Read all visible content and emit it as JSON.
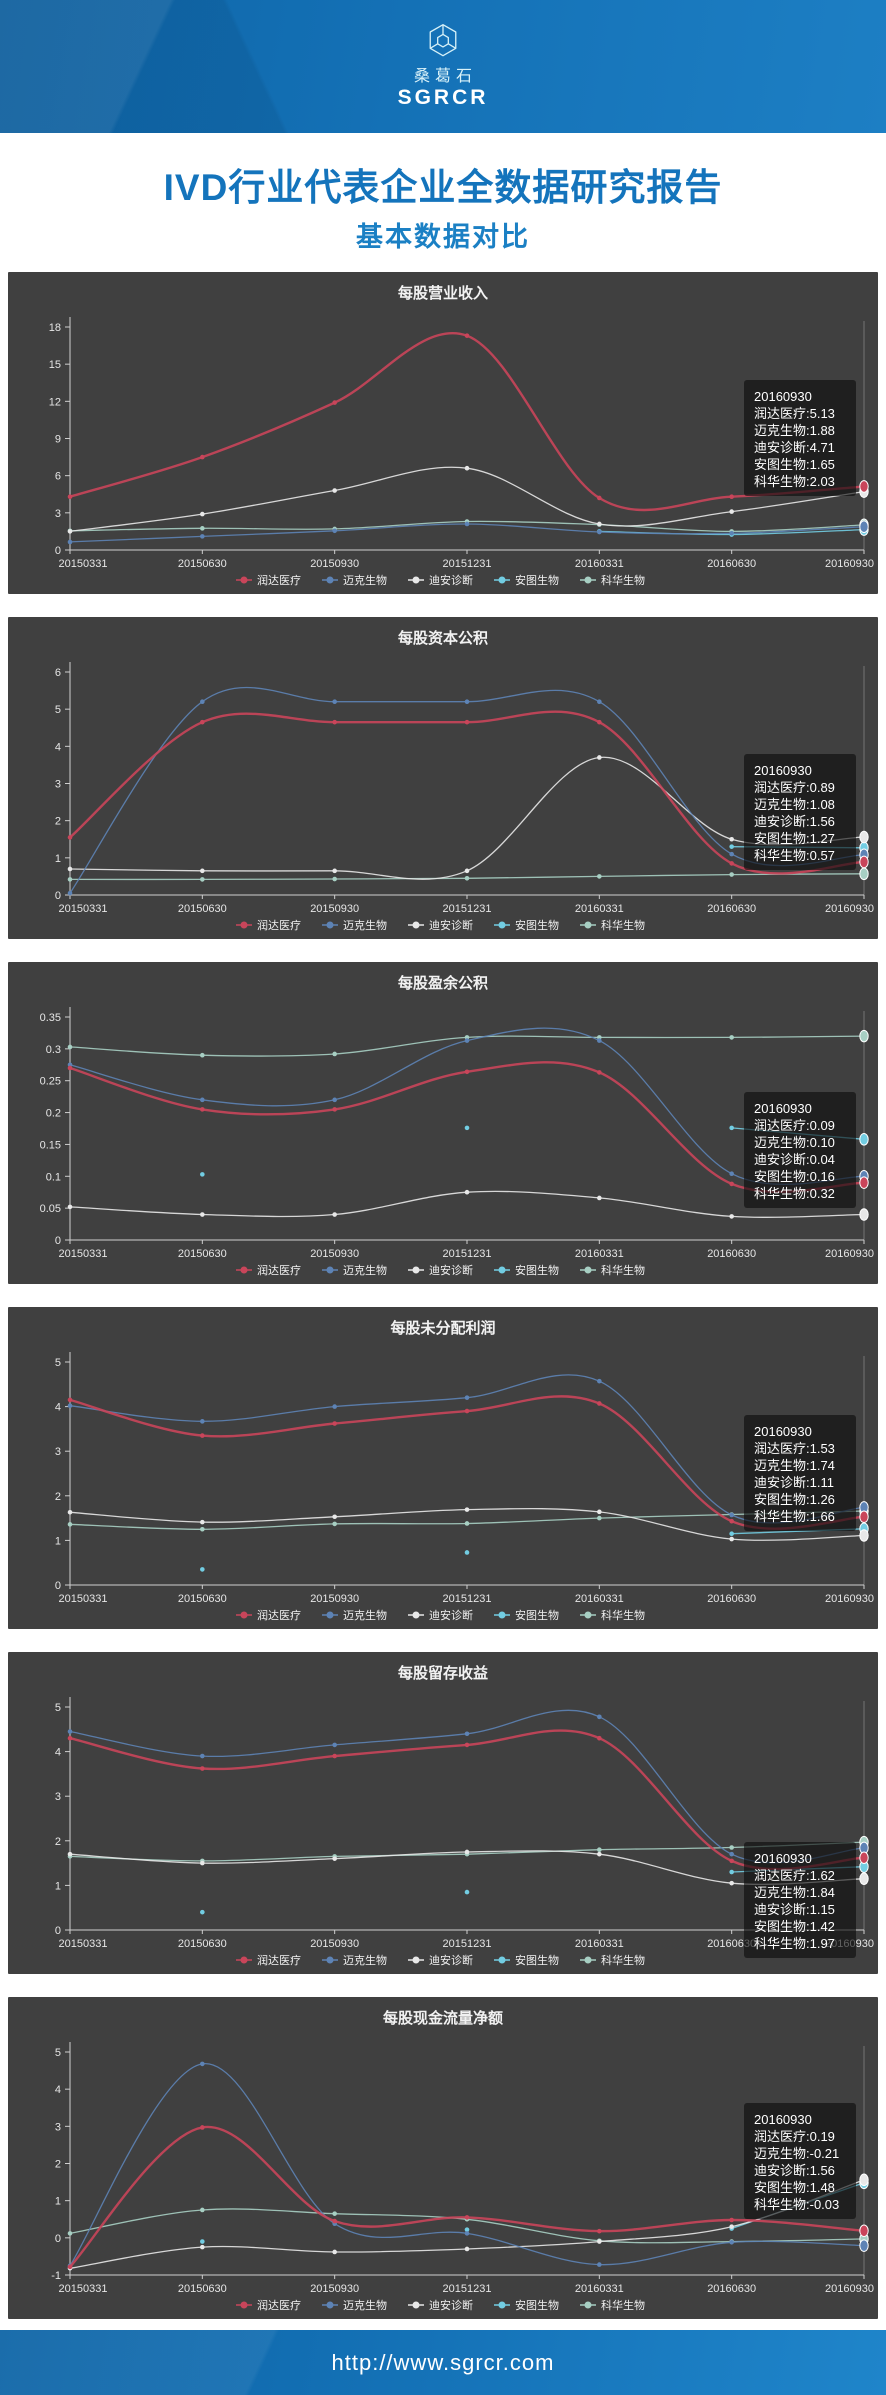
{
  "header": {
    "logo_text_cn": "桑葛石",
    "logo_text_en": "SGRCR"
  },
  "report": {
    "title": "IVD行业代表企业全数据研究报告",
    "subtitle": "基本数据对比"
  },
  "footer": {
    "url": "http://www.sgrcr.com"
  },
  "theme": {
    "panel_bg": "#404040",
    "axis_color": "#cfcfcf",
    "text_on_dark": "#f2f2f2",
    "title_blue": "#1474bc",
    "tooltip_bg": "rgba(12,12,12,0.62)"
  },
  "companies": [
    {
      "name": "润达医疗",
      "color": "#c9455a"
    },
    {
      "name": "迈克生物",
      "color": "#5d83b5"
    },
    {
      "name": "迪安诊断",
      "color": "#e8e8e8"
    },
    {
      "name": "安图生物",
      "color": "#72cde2"
    },
    {
      "name": "科华生物",
      "color": "#a7cfc3"
    }
  ],
  "x_labels": [
    "20150331",
    "20150630",
    "20150930",
    "20151231",
    "20160331",
    "20160630",
    "20160930"
  ],
  "chart_data": [
    {
      "type": "line",
      "title": "每股营业收入",
      "ylim": [
        0,
        18
      ],
      "yticks": [
        0,
        3,
        6,
        9,
        12,
        15,
        18
      ],
      "tooltip_pos": {
        "x": 736,
        "y": 108
      },
      "tooltip": {
        "date": "20160930",
        "润达医疗": "5.13",
        "迈克生物": "1.88",
        "迪安诊断": "4.71",
        "安图生物": "1.65",
        "科华生物": "2.03"
      },
      "series": [
        {
          "name": "润达医疗",
          "values": [
            4.3,
            7.5,
            11.9,
            17.3,
            4.2,
            4.3,
            5.13
          ]
        },
        {
          "name": "迈克生物",
          "values": [
            0.65,
            1.1,
            1.55,
            2.1,
            1.45,
            1.35,
            1.88
          ]
        },
        {
          "name": "迪安诊断",
          "values": [
            1.5,
            2.9,
            4.8,
            6.6,
            2.1,
            3.1,
            4.71
          ]
        },
        {
          "name": "安图生物",
          "values": [
            null,
            null,
            null,
            null,
            1.5,
            1.25,
            1.65
          ]
        },
        {
          "name": "科华生物",
          "values": [
            1.55,
            1.75,
            1.7,
            2.3,
            2.05,
            1.5,
            2.03
          ]
        }
      ]
    },
    {
      "type": "line",
      "title": "每股资本公积",
      "ylim": [
        0,
        6
      ],
      "yticks": [
        0,
        1,
        2,
        3,
        4,
        5,
        6
      ],
      "tooltip_pos": {
        "x": 736,
        "y": 137
      },
      "tooltip": {
        "date": "20160930",
        "润达医疗": "0.89",
        "迈克生物": "1.08",
        "迪安诊断": "1.56",
        "安图生物": "1.27",
        "科华生物": "0.57"
      },
      "series": [
        {
          "name": "润达医疗",
          "values": [
            1.55,
            4.65,
            4.65,
            4.65,
            4.65,
            0.85,
            0.89
          ]
        },
        {
          "name": "迈克生物",
          "values": [
            0.05,
            5.2,
            5.2,
            5.2,
            5.2,
            1.1,
            1.08
          ]
        },
        {
          "name": "迪安诊断",
          "values": [
            0.7,
            0.65,
            0.65,
            0.65,
            3.7,
            1.5,
            1.56
          ]
        },
        {
          "name": "安图生物",
          "values": [
            null,
            null,
            null,
            null,
            null,
            1.3,
            1.27
          ]
        },
        {
          "name": "科华生物",
          "values": [
            0.42,
            0.42,
            0.43,
            0.45,
            0.5,
            0.55,
            0.57
          ]
        }
      ]
    },
    {
      "type": "line",
      "title": "每股盈余公积",
      "ylim": [
        0,
        0.35
      ],
      "yticks": [
        0,
        0.05,
        0.1,
        0.15,
        0.2,
        0.25,
        0.3,
        0.35
      ],
      "tooltip_pos": {
        "x": 736,
        "y": 130
      },
      "tooltip": {
        "date": "20160930",
        "润达医疗": "0.09",
        "迈克生物": "0.10",
        "迪安诊断": "0.04",
        "安图生物": "0.16",
        "科华生物": "0.32"
      },
      "series": [
        {
          "name": "润达医疗",
          "values": [
            0.27,
            0.205,
            0.205,
            0.264,
            0.263,
            0.088,
            0.09
          ]
        },
        {
          "name": "迈克生物",
          "values": [
            0.275,
            0.22,
            0.22,
            0.313,
            0.313,
            0.104,
            0.1
          ]
        },
        {
          "name": "迪安诊断",
          "values": [
            0.052,
            0.04,
            0.04,
            0.075,
            0.066,
            0.037,
            0.04
          ]
        },
        {
          "name": "安图生物",
          "values": [
            null,
            0.103,
            null,
            0.176,
            null,
            0.176,
            0.158
          ]
        },
        {
          "name": "科华生物",
          "values": [
            0.303,
            0.29,
            0.292,
            0.318,
            0.318,
            0.318,
            0.32
          ]
        }
      ]
    },
    {
      "type": "line",
      "title": "每股未分配利润",
      "ylim": [
        0,
        5
      ],
      "yticks": [
        0,
        1,
        2,
        3,
        4,
        5
      ],
      "tooltip_pos": {
        "x": 736,
        "y": 108
      },
      "tooltip": {
        "date": "20160930",
        "润达医疗": "1.53",
        "迈克生物": "1.74",
        "迪安诊断": "1.11",
        "安图生物": "1.26",
        "科华生物": "1.66"
      },
      "series": [
        {
          "name": "润达医疗",
          "values": [
            4.15,
            3.35,
            3.62,
            3.9,
            4.07,
            1.43,
            1.53
          ]
        },
        {
          "name": "迈克生物",
          "values": [
            4.02,
            3.67,
            4.0,
            4.2,
            4.57,
            1.57,
            1.74
          ]
        },
        {
          "name": "迪安诊断",
          "values": [
            1.63,
            1.41,
            1.53,
            1.69,
            1.64,
            1.03,
            1.11
          ]
        },
        {
          "name": "安图生物",
          "values": [
            null,
            0.35,
            null,
            0.73,
            null,
            1.15,
            1.26
          ]
        },
        {
          "name": "科华生物",
          "values": [
            1.36,
            1.25,
            1.37,
            1.38,
            1.5,
            1.58,
            1.66
          ]
        }
      ]
    },
    {
      "type": "line",
      "title": "每股留存收益",
      "ylim": [
        0,
        5
      ],
      "yticks": [
        0,
        1,
        2,
        3,
        4,
        5
      ],
      "tooltip_pos": {
        "x": 736,
        "y": 190
      },
      "tooltip": {
        "date": "20160930",
        "润达医疗": "1.62",
        "迈克生物": "1.84",
        "迪安诊断": "1.15",
        "安图生物": "1.42",
        "科华生物": "1.97"
      },
      "series": [
        {
          "name": "润达医疗",
          "values": [
            4.3,
            3.62,
            3.9,
            4.15,
            4.3,
            1.55,
            1.62
          ]
        },
        {
          "name": "迈克生物",
          "values": [
            4.45,
            3.9,
            4.15,
            4.4,
            4.78,
            1.7,
            1.84
          ]
        },
        {
          "name": "迪安诊断",
          "values": [
            1.7,
            1.5,
            1.6,
            1.75,
            1.7,
            1.05,
            1.15
          ]
        },
        {
          "name": "安图生物",
          "values": [
            null,
            0.4,
            null,
            0.85,
            null,
            1.3,
            1.42
          ]
        },
        {
          "name": "科华生物",
          "values": [
            1.65,
            1.55,
            1.65,
            1.7,
            1.8,
            1.85,
            1.97
          ]
        }
      ]
    },
    {
      "type": "line",
      "title": "每股现金流量净额",
      "ylim": [
        -1,
        5
      ],
      "yticks": [
        -1,
        0,
        1,
        2,
        3,
        4,
        5
      ],
      "tooltip_pos": {
        "x": 736,
        "y": 106
      },
      "tooltip": {
        "date": "20160930",
        "润达医疗": "0.19",
        "迈克生物": "-0.21",
        "迪安诊断": "1.56",
        "安图生物": "1.48",
        "科华生物": "-0.03"
      },
      "series": [
        {
          "name": "润达医疗",
          "values": [
            -0.78,
            2.97,
            0.45,
            0.55,
            0.18,
            0.48,
            0.19
          ]
        },
        {
          "name": "迈克生物",
          "values": [
            -0.75,
            4.68,
            0.38,
            0.12,
            -0.72,
            -0.12,
            -0.21
          ]
        },
        {
          "name": "迪安诊断",
          "values": [
            -0.82,
            -0.25,
            -0.38,
            -0.3,
            -0.1,
            0.3,
            1.56
          ]
        },
        {
          "name": "安图生物",
          "values": [
            null,
            -0.1,
            null,
            0.22,
            null,
            0.25,
            1.48
          ]
        },
        {
          "name": "科华生物",
          "values": [
            0.12,
            0.75,
            0.65,
            0.5,
            -0.08,
            -0.1,
            -0.03
          ]
        }
      ]
    }
  ]
}
